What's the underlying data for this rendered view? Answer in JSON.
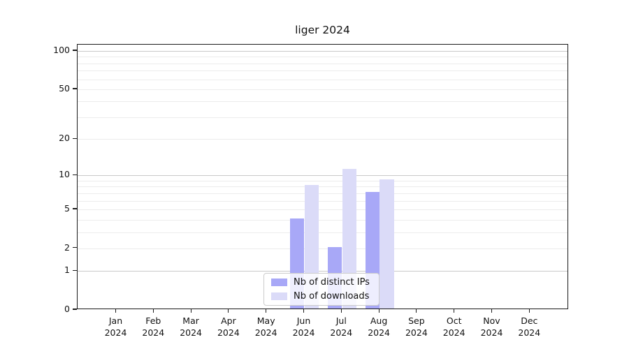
{
  "title": "liger 2024",
  "legend": {
    "items": [
      {
        "label": "Nb of distinct IPs"
      },
      {
        "label": "Nb of downloads"
      }
    ]
  },
  "chart_data": {
    "type": "bar",
    "title": "liger 2024",
    "categories": [
      "Jan 2024",
      "Feb 2024",
      "Mar 2024",
      "Apr 2024",
      "May 2024",
      "Jun 2024",
      "Jul 2024",
      "Aug 2024",
      "Sep 2024",
      "Oct 2024",
      "Nov 2024",
      "Dec 2024"
    ],
    "series": [
      {
        "name": "Nb of distinct IPs",
        "color": "#a8a8f7",
        "values": [
          0,
          0,
          0,
          0,
          0,
          4,
          2,
          7,
          0,
          0,
          0,
          0
        ]
      },
      {
        "name": "Nb of downloads",
        "color": "#dbdbf8",
        "values": [
          0,
          0,
          0,
          0,
          0,
          8,
          11,
          9,
          0,
          0,
          0,
          0
        ]
      }
    ],
    "yscale": "log1p",
    "ylim": [
      0,
      112
    ],
    "yticks": [
      0,
      1,
      2,
      5,
      10,
      20,
      50,
      100
    ],
    "minor_yticks": [
      3,
      4,
      6,
      7,
      8,
      9,
      30,
      40,
      60,
      70,
      80,
      90
    ],
    "decade_gridlines": [
      1,
      10,
      100
    ],
    "grid": "horizontal",
    "legend_position": "bottom-center"
  }
}
